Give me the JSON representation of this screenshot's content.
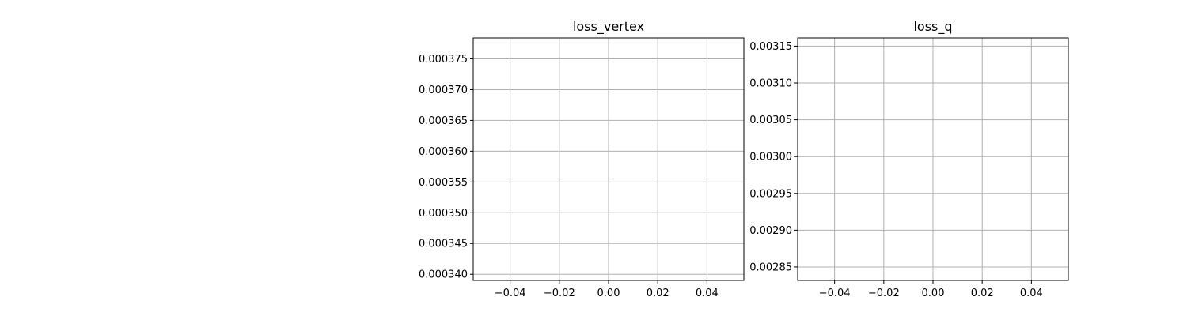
{
  "chart_data": [
    {
      "type": "line",
      "title": "loss_vertex",
      "xlabel": "",
      "ylabel": "",
      "series": [],
      "xlim": [
        -0.055,
        0.055
      ],
      "ylim": [
        0.000339,
        0.0003784
      ],
      "xticks": [
        -0.04,
        -0.02,
        0.0,
        0.02,
        0.04
      ],
      "xtick_labels": [
        "−0.04",
        "−0.02",
        "0.00",
        "0.02",
        "0.04"
      ],
      "yticks": [
        0.00034,
        0.000345,
        0.00035,
        0.000355,
        0.00036,
        0.000365,
        0.00037,
        0.000375
      ],
      "ytick_labels": [
        "0.000340",
        "0.000345",
        "0.000350",
        "0.000355",
        "0.000360",
        "0.000365",
        "0.000370",
        "0.000375"
      ],
      "grid": true
    },
    {
      "type": "line",
      "title": "loss_q",
      "xlabel": "",
      "ylabel": "",
      "series": [],
      "xlim": [
        -0.055,
        0.055
      ],
      "ylim": [
        0.0028317,
        0.0031612
      ],
      "xticks": [
        -0.04,
        -0.02,
        0.0,
        0.02,
        0.04
      ],
      "xtick_labels": [
        "−0.04",
        "−0.02",
        "0.00",
        "0.02",
        "0.04"
      ],
      "yticks": [
        0.00285,
        0.0029,
        0.00295,
        0.003,
        0.00305,
        0.0031,
        0.00315
      ],
      "ytick_labels": [
        "0.00285",
        "0.00290",
        "0.00295",
        "0.00300",
        "0.00305",
        "0.00310",
        "0.00315"
      ],
      "grid": true
    }
  ]
}
